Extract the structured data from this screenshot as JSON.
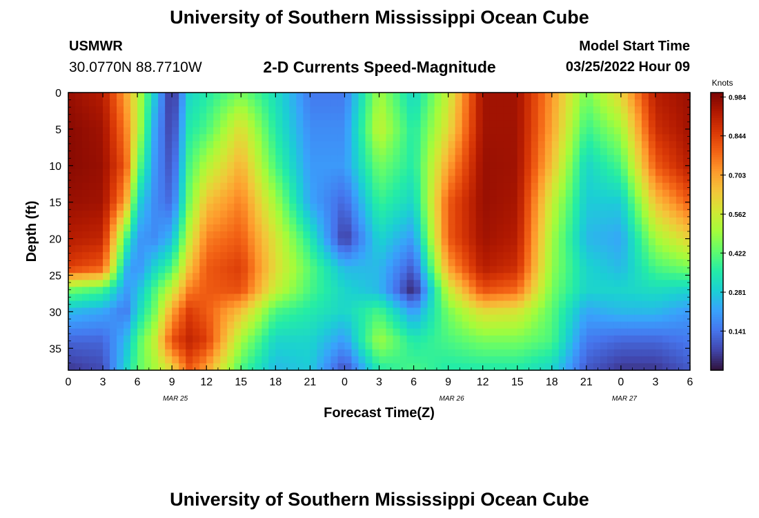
{
  "header": {
    "title": "University of Southern Mississippi Ocean Cube",
    "station": "USMWR",
    "coordinates": "30.0770N  88.7710W",
    "subtitle": "2-D Currents Speed-Magnitude",
    "model_start_label": "Model Start Time",
    "model_start_value": "03/25/2022 Hour 09"
  },
  "footer": {
    "title": "University of Southern Mississippi Ocean Cube"
  },
  "chart_data": {
    "type": "heatmap",
    "title": "2-D Currents Speed-Magnitude",
    "xlabel": "Forecast Time(Z)",
    "ylabel": "Depth (ft)",
    "x_ticks": [
      "0",
      "3",
      "6",
      "9",
      "12",
      "15",
      "18",
      "21",
      "0",
      "3",
      "6",
      "9",
      "12",
      "15",
      "18",
      "21",
      "0",
      "3",
      "6"
    ],
    "date_labels": [
      {
        "label": "MAR 25",
        "tick_index": 3
      },
      {
        "label": "MAR 26",
        "tick_index": 11
      },
      {
        "label": "MAR 27",
        "tick_index": 16
      }
    ],
    "y_ticks": [
      0,
      5,
      10,
      15,
      20,
      25,
      30,
      35
    ],
    "ylim": [
      38,
      0
    ],
    "xlim_hours": [
      0,
      54
    ],
    "colorbar": {
      "unit": "Knots",
      "ticks": [
        "0.984",
        "0.844",
        "0.703",
        "0.562",
        "0.422",
        "0.281",
        "0.141"
      ],
      "tick_values": [
        0.984,
        0.844,
        0.703,
        0.562,
        0.422,
        0.281,
        0.141
      ],
      "range": [
        0.0,
        1.0
      ],
      "colormap": [
        "#30123b",
        "#4145ab",
        "#4675ed",
        "#39a2fc",
        "#1bcfd4",
        "#24eca6",
        "#61fc6c",
        "#a4fc3b",
        "#d1e834",
        "#f3c63a",
        "#fe9b2d",
        "#f36315",
        "#d93806",
        "#b11901",
        "#7a0403"
      ]
    },
    "keyframes": [
      {
        "hour": 0,
        "depths": [
          0,
          5,
          10,
          15,
          20,
          24,
          27,
          30,
          34,
          38
        ],
        "values": [
          0.96,
          0.98,
          0.98,
          0.96,
          0.92,
          0.85,
          0.45,
          0.25,
          0.12,
          0.05
        ]
      },
      {
        "hour": 3,
        "depths": [
          0,
          5,
          10,
          15,
          20,
          24,
          27,
          30,
          34,
          38
        ],
        "values": [
          0.92,
          0.95,
          0.96,
          0.95,
          0.9,
          0.8,
          0.4,
          0.22,
          0.12,
          0.08
        ]
      },
      {
        "hour": 5,
        "depths": [
          0,
          5,
          10,
          15,
          20,
          24,
          27,
          30,
          34,
          38
        ],
        "values": [
          0.7,
          0.75,
          0.8,
          0.7,
          0.4,
          0.25,
          0.2,
          0.15,
          0.25,
          0.3
        ]
      },
      {
        "hour": 6,
        "depths": [
          0,
          5,
          10,
          15,
          20,
          24,
          27,
          30,
          34,
          38
        ],
        "values": [
          0.55,
          0.55,
          0.45,
          0.3,
          0.2,
          0.18,
          0.25,
          0.3,
          0.4,
          0.42
        ]
      },
      {
        "hour": 7.5,
        "depths": [
          0,
          5,
          10,
          15,
          20,
          24,
          27,
          30,
          34,
          38
        ],
        "values": [
          0.28,
          0.22,
          0.2,
          0.18,
          0.18,
          0.3,
          0.4,
          0.45,
          0.55,
          0.5
        ]
      },
      {
        "hour": 9,
        "depths": [
          0,
          5,
          10,
          15,
          20,
          24,
          27,
          30,
          34,
          38
        ],
        "values": [
          0.02,
          0.05,
          0.08,
          0.12,
          0.25,
          0.4,
          0.55,
          0.7,
          0.82,
          0.6
        ]
      },
      {
        "hour": 10.5,
        "depths": [
          0,
          5,
          10,
          15,
          20,
          24,
          27,
          30,
          34,
          38
        ],
        "values": [
          0.3,
          0.35,
          0.4,
          0.45,
          0.55,
          0.65,
          0.75,
          0.85,
          0.9,
          0.8
        ]
      },
      {
        "hour": 12,
        "depths": [
          0,
          5,
          10,
          15,
          20,
          24,
          27,
          30,
          34,
          38
        ],
        "values": [
          0.35,
          0.4,
          0.52,
          0.65,
          0.75,
          0.8,
          0.8,
          0.8,
          0.85,
          0.7
        ]
      },
      {
        "hour": 15,
        "depths": [
          0,
          5,
          10,
          15,
          20,
          24,
          27,
          30,
          34,
          38
        ],
        "values": [
          0.45,
          0.6,
          0.68,
          0.75,
          0.8,
          0.85,
          0.82,
          0.65,
          0.5,
          0.4
        ]
      },
      {
        "hour": 18,
        "depths": [
          0,
          5,
          10,
          15,
          20,
          24,
          27,
          30,
          34,
          38
        ],
        "values": [
          0.32,
          0.35,
          0.4,
          0.5,
          0.58,
          0.6,
          0.55,
          0.4,
          0.3,
          0.25
        ]
      },
      {
        "hour": 21,
        "depths": [
          0,
          5,
          10,
          15,
          20,
          24,
          27,
          30,
          34,
          38
        ],
        "values": [
          0.15,
          0.18,
          0.2,
          0.22,
          0.35,
          0.42,
          0.4,
          0.35,
          0.3,
          0.28
        ]
      },
      {
        "hour": 24,
        "depths": [
          0,
          5,
          10,
          15,
          20,
          24,
          27,
          30,
          34,
          38
        ],
        "values": [
          0.15,
          0.18,
          0.2,
          0.12,
          0.05,
          0.25,
          0.3,
          0.3,
          0.2,
          0.08
        ]
      },
      {
        "hour": 27,
        "depths": [
          0,
          5,
          10,
          15,
          20,
          24,
          27,
          30,
          34,
          38
        ],
        "values": [
          0.5,
          0.55,
          0.45,
          0.38,
          0.3,
          0.25,
          0.25,
          0.4,
          0.5,
          0.35
        ]
      },
      {
        "hour": 30,
        "depths": [
          0,
          5,
          10,
          15,
          20,
          24,
          27,
          30,
          34,
          38
        ],
        "values": [
          0.3,
          0.35,
          0.35,
          0.3,
          0.2,
          0.1,
          0.02,
          0.2,
          0.35,
          0.4
        ]
      },
      {
        "hour": 33,
        "depths": [
          0,
          5,
          10,
          15,
          20,
          24,
          27,
          30,
          34,
          38
        ],
        "values": [
          0.55,
          0.6,
          0.7,
          0.8,
          0.8,
          0.7,
          0.55,
          0.45,
          0.4,
          0.35
        ]
      },
      {
        "hour": 36,
        "depths": [
          0,
          5,
          10,
          15,
          20,
          24,
          27,
          30,
          34,
          38
        ],
        "values": [
          0.95,
          0.95,
          0.96,
          0.96,
          0.95,
          0.92,
          0.82,
          0.6,
          0.45,
          0.35
        ]
      },
      {
        "hour": 39,
        "depths": [
          0,
          5,
          10,
          15,
          20,
          24,
          27,
          30,
          34,
          38
        ],
        "values": [
          0.95,
          0.95,
          0.95,
          0.94,
          0.92,
          0.88,
          0.78,
          0.58,
          0.45,
          0.35
        ]
      },
      {
        "hour": 42,
        "depths": [
          0,
          5,
          10,
          15,
          20,
          24,
          27,
          30,
          34,
          38
        ],
        "values": [
          0.72,
          0.7,
          0.65,
          0.55,
          0.5,
          0.48,
          0.45,
          0.42,
          0.4,
          0.3
        ]
      },
      {
        "hour": 45,
        "depths": [
          0,
          5,
          10,
          15,
          20,
          24,
          27,
          30,
          34,
          38
        ],
        "values": [
          0.45,
          0.38,
          0.3,
          0.28,
          0.25,
          0.3,
          0.3,
          0.22,
          0.15,
          0.1
        ]
      },
      {
        "hour": 48,
        "depths": [
          0,
          5,
          10,
          15,
          20,
          24,
          27,
          30,
          34,
          38
        ],
        "values": [
          0.62,
          0.5,
          0.4,
          0.28,
          0.22,
          0.25,
          0.3,
          0.25,
          0.12,
          0.05
        ]
      },
      {
        "hour": 51,
        "depths": [
          0,
          5,
          10,
          15,
          20,
          24,
          27,
          30,
          34,
          38
        ],
        "values": [
          0.92,
          0.88,
          0.8,
          0.65,
          0.5,
          0.4,
          0.32,
          0.25,
          0.12,
          0.05
        ]
      },
      {
        "hour": 54,
        "depths": [
          0,
          5,
          10,
          15,
          20,
          24,
          27,
          30,
          34,
          38
        ],
        "values": [
          0.96,
          0.95,
          0.92,
          0.8,
          0.62,
          0.45,
          0.3,
          0.2,
          0.15,
          0.1
        ]
      }
    ]
  }
}
